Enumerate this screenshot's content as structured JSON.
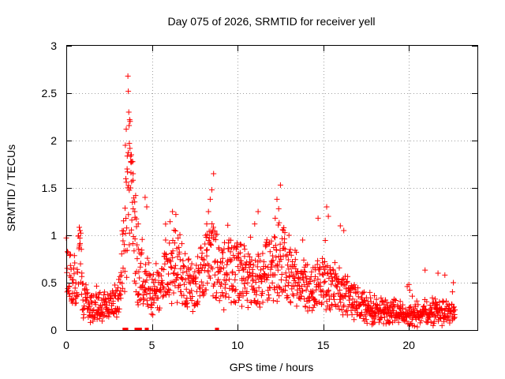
{
  "chart_data": {
    "type": "scatter",
    "title": "Day 075 of 2026, SRMTID for receiver yell",
    "xlabel": "GPS time / hours",
    "ylabel": "SRMTID / TECUs",
    "xlim": [
      0,
      24
    ],
    "ylim": [
      0,
      3
    ],
    "xticks": [
      0,
      5,
      10,
      15,
      20
    ],
    "xtick_labels": [
      "0",
      "5",
      "10",
      "15",
      "20"
    ],
    "yticks": [
      0,
      0.5,
      1,
      1.5,
      2,
      2.5,
      3
    ],
    "ytick_labels": [
      "0",
      "0.5",
      "1",
      "1.5",
      "2",
      "2.5",
      "3"
    ],
    "grid": true,
    "marker": "+",
    "color": "#ff0000",
    "envelope": [
      [
        0.0,
        0.7
      ],
      [
        0.3,
        0.48
      ],
      [
        0.6,
        0.55
      ],
      [
        0.8,
        0.85
      ],
      [
        1.0,
        0.38
      ],
      [
        1.5,
        0.25
      ],
      [
        2.0,
        0.25
      ],
      [
        2.5,
        0.3
      ],
      [
        3.0,
        0.28
      ],
      [
        3.3,
        0.85
      ],
      [
        3.5,
        1.1
      ],
      [
        3.7,
        1.55
      ],
      [
        3.9,
        1.2
      ],
      [
        4.2,
        0.55
      ],
      [
        4.6,
        0.55
      ],
      [
        5.0,
        0.4
      ],
      [
        5.5,
        0.5
      ],
      [
        6.0,
        0.62
      ],
      [
        6.5,
        0.7
      ],
      [
        7.0,
        0.5
      ],
      [
        7.5,
        0.45
      ],
      [
        8.0,
        0.62
      ],
      [
        8.5,
        0.85
      ],
      [
        9.0,
        0.55
      ],
      [
        9.5,
        0.62
      ],
      [
        10.0,
        0.62
      ],
      [
        11.0,
        0.5
      ],
      [
        12.0,
        0.7
      ],
      [
        12.5,
        0.8
      ],
      [
        13.0,
        0.6
      ],
      [
        14.0,
        0.45
      ],
      [
        15.0,
        0.5
      ],
      [
        16.0,
        0.45
      ],
      [
        16.5,
        0.35
      ],
      [
        17.0,
        0.28
      ],
      [
        18.0,
        0.22
      ],
      [
        19.0,
        0.2
      ],
      [
        20.0,
        0.15
      ],
      [
        21.0,
        0.18
      ],
      [
        22.0,
        0.2
      ],
      [
        22.7,
        0.18
      ]
    ],
    "spikes": [
      [
        3.6,
        2.68
      ],
      [
        3.62,
        2.52
      ],
      [
        3.65,
        2.3
      ],
      [
        3.7,
        2.22
      ],
      [
        3.5,
        2.12
      ],
      [
        3.68,
        1.97
      ],
      [
        3.8,
        1.85
      ],
      [
        3.82,
        1.78
      ],
      [
        3.45,
        1.95
      ],
      [
        3.9,
        1.65
      ],
      [
        3.55,
        1.7
      ],
      [
        3.75,
        1.5
      ],
      [
        4.05,
        1.42
      ],
      [
        4.6,
        1.4
      ],
      [
        4.7,
        1.3
      ],
      [
        4.0,
        1.25
      ],
      [
        4.2,
        1.12
      ],
      [
        6.2,
        1.25
      ],
      [
        6.4,
        1.22
      ],
      [
        8.6,
        1.65
      ],
      [
        8.5,
        1.48
      ],
      [
        8.4,
        1.38
      ],
      [
        8.3,
        1.25
      ],
      [
        8.2,
        1.12
      ],
      [
        12.3,
        1.38
      ],
      [
        12.5,
        1.53
      ],
      [
        12.4,
        1.28
      ],
      [
        12.2,
        1.18
      ],
      [
        11.2,
        1.25
      ],
      [
        11.0,
        1.12
      ],
      [
        12.7,
        1.08
      ],
      [
        13.0,
        1.0
      ],
      [
        13.8,
        0.95
      ],
      [
        14.7,
        1.18
      ],
      [
        15.2,
        1.3
      ],
      [
        15.3,
        1.2
      ],
      [
        16.0,
        1.1
      ],
      [
        16.2,
        1.05
      ],
      [
        0.8,
        1.05
      ],
      [
        5.8,
        0.95
      ],
      [
        20.0,
        0.48
      ],
      [
        20.05,
        0.42
      ],
      [
        21.7,
        0.6
      ],
      [
        22.1,
        0.58
      ],
      [
        22.6,
        0.5
      ],
      [
        9.5,
        0.95
      ],
      [
        10.2,
        0.9
      ]
    ],
    "axis_markers_x": [
      3.4,
      3.5,
      4.1,
      4.2,
      4.3,
      4.7,
      8.8
    ],
    "point_count": 1500
  }
}
